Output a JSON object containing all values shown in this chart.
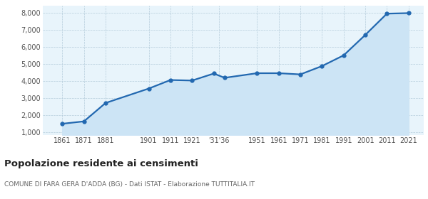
{
  "years": [
    1861,
    1871,
    1881,
    1901,
    1911,
    1921,
    1931,
    1936,
    1951,
    1961,
    1971,
    1981,
    1991,
    2001,
    2011,
    2021
  ],
  "population": [
    1480,
    1620,
    2700,
    3550,
    4050,
    4020,
    4430,
    4180,
    4450,
    4450,
    4380,
    4870,
    5500,
    6700,
    7950,
    7980
  ],
  "line_color": "#2268b0",
  "fill_color": "#cce4f5",
  "bg_color": "#e8f4fb",
  "grid_color": "#b0c8d8",
  "title": "Popolazione residente ai censimenti",
  "subtitle": "COMUNE DI FARA GERA D'ADDA (BG) - Dati ISTAT - Elaborazione TUTTITALIA.IT",
  "ylim": [
    800,
    8400
  ],
  "yticks": [
    1000,
    2000,
    3000,
    4000,
    5000,
    6000,
    7000,
    8000
  ],
  "xlim_left": 1852,
  "xlim_right": 2028
}
